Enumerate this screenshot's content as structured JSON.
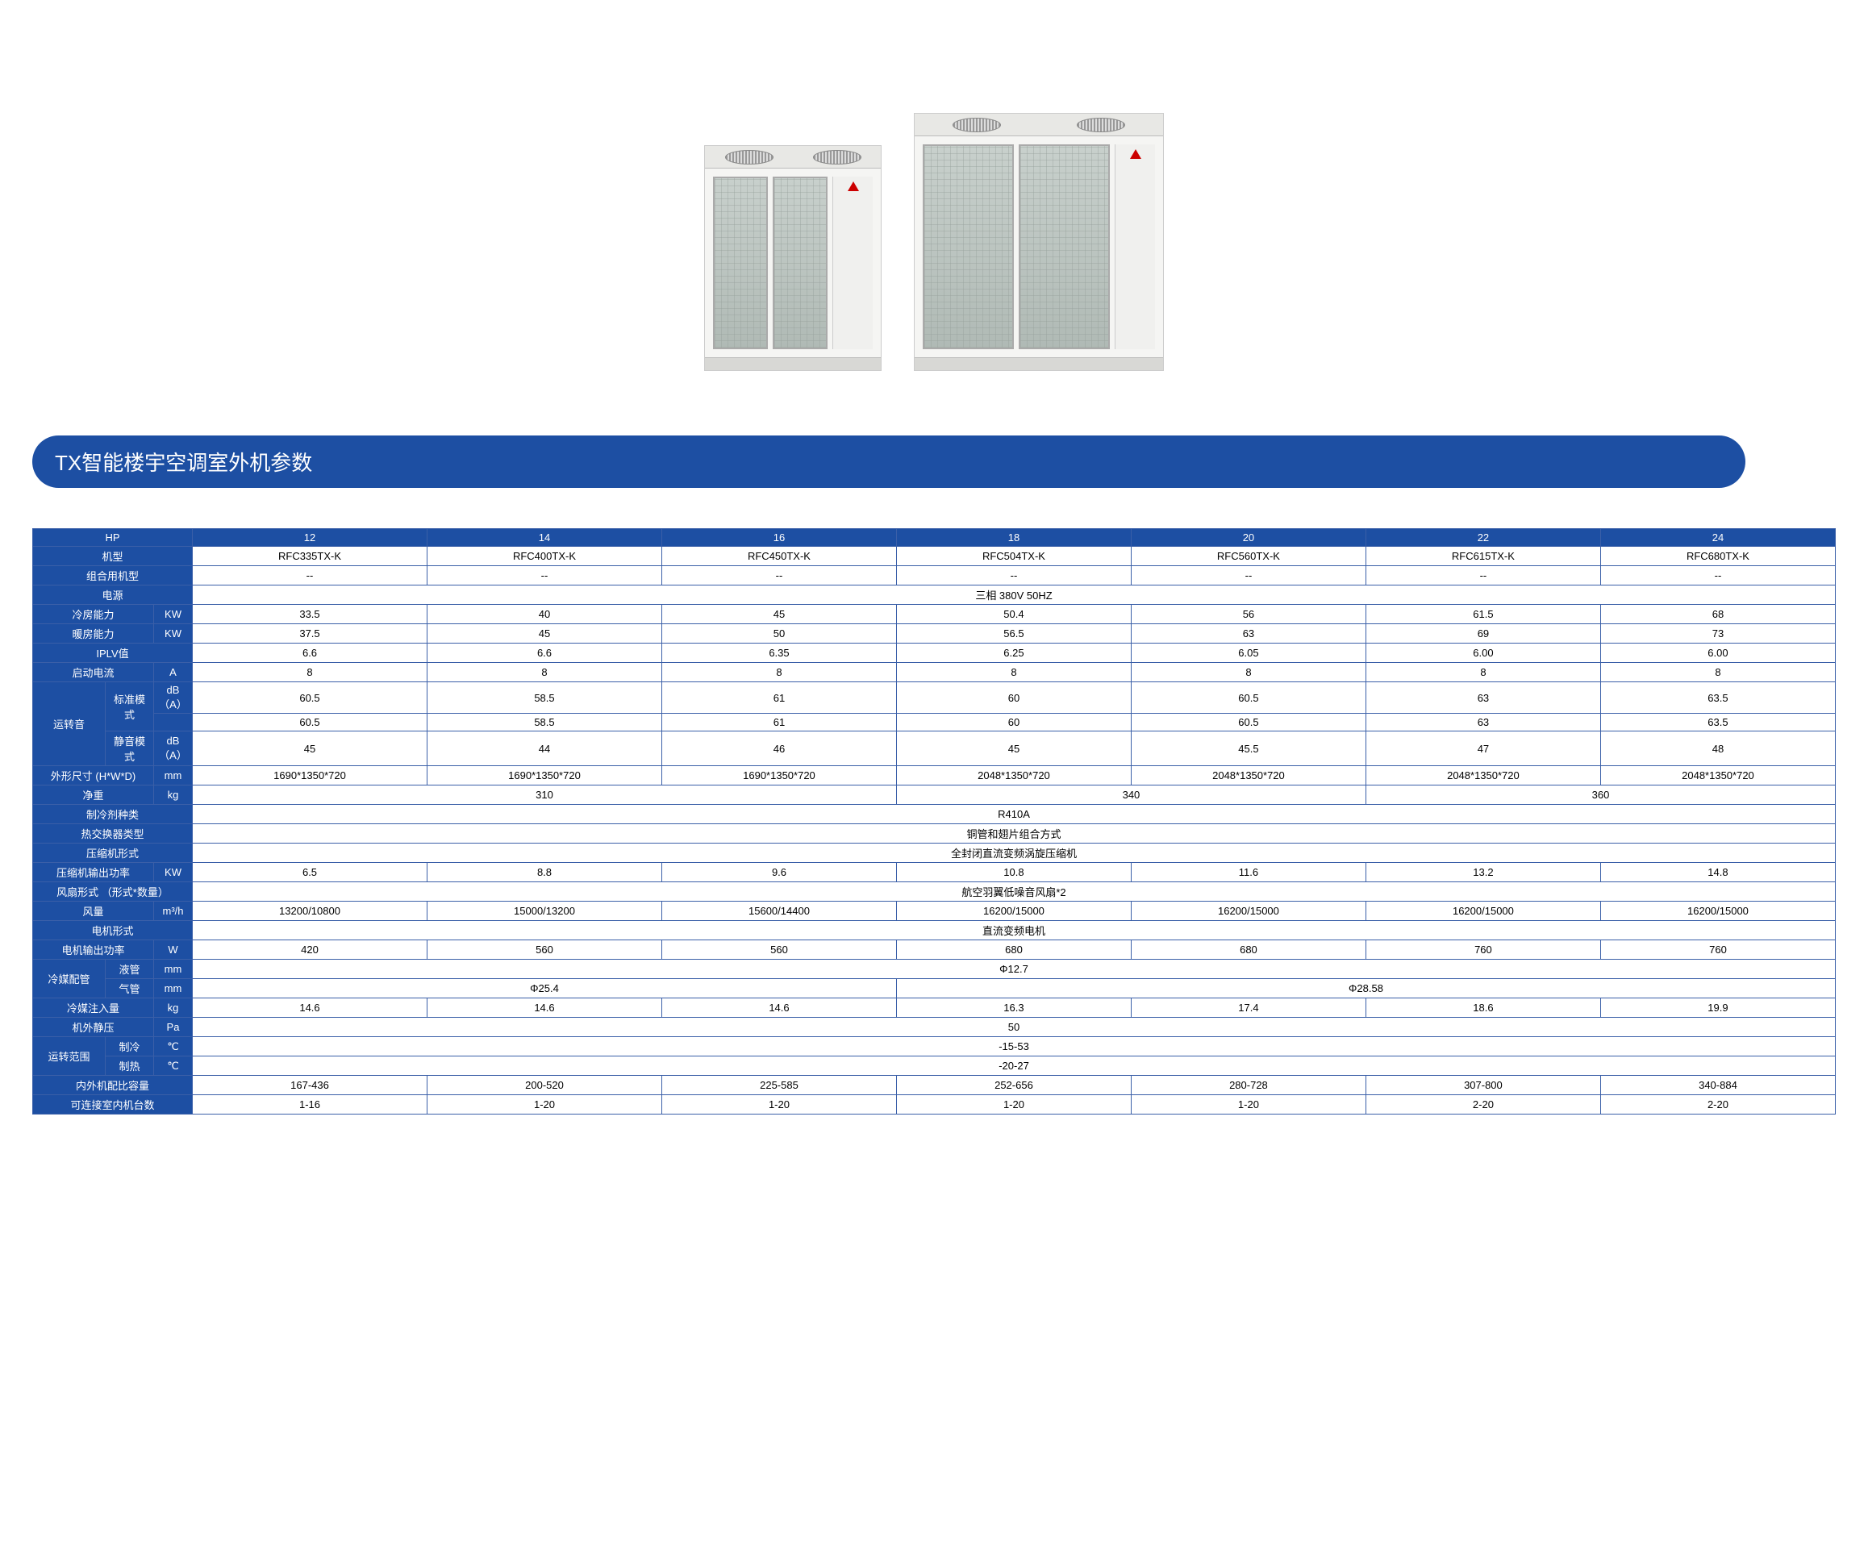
{
  "title": "TX智能楼宇空调室外机参数",
  "colors": {
    "header_bg": "#1d4fa3",
    "header_text": "#ffffff",
    "border": "#3a5fa8",
    "page_bg": "#ffffff"
  },
  "labels": {
    "hp": "HP",
    "model": "机型",
    "combo_model": "组合用机型",
    "power_source": "电源",
    "cooling_capacity": "冷房能力",
    "heating_capacity": "暖房能力",
    "iplv": "IPLV值",
    "start_current": "启动电流",
    "noise": "运转音",
    "noise_std": "标准模式",
    "noise_quiet": "静音模式",
    "dimensions": "外形尺寸 (H*W*D)",
    "net_weight": "净重",
    "refrigerant": "制冷剂种类",
    "hx_type": "热交换器类型",
    "compressor_type": "压缩机形式",
    "compressor_output": "压缩机输出功率",
    "fan_form": "风扇形式  （形式*数量）",
    "airflow": "风量",
    "motor_type": "电机形式",
    "motor_output": "电机输出功率",
    "piping": "冷媒配管",
    "liquid_pipe": "液管",
    "gas_pipe": "气管",
    "charge": "冷媒注入量",
    "ext_static": "机外静压",
    "op_range": "运转范围",
    "op_cool": "制冷",
    "op_heat": "制热",
    "idu_ratio": "内外机配比容量",
    "idu_count": "可连接室内机台数"
  },
  "units": {
    "kw": "KW",
    "a": "A",
    "dba": "dB（A）",
    "mm": "mm",
    "kg": "kg",
    "m3h": "m³/h",
    "w": "W",
    "pa": "Pa",
    "c": "℃"
  },
  "hp_values": [
    "12",
    "14",
    "16",
    "18",
    "20",
    "22",
    "24"
  ],
  "models": [
    "RFC335TX-K",
    "RFC400TX-K",
    "RFC450TX-K",
    "RFC504TX-K",
    "RFC560TX-K",
    "RFC615TX-K",
    "RFC680TX-K"
  ],
  "combo": [
    "--",
    "--",
    "--",
    "--",
    "--",
    "--",
    "--"
  ],
  "power_source_val": "三相 380V 50HZ",
  "cooling": [
    "33.5",
    "40",
    "45",
    "50.4",
    "56",
    "61.5",
    "68"
  ],
  "heating": [
    "37.5",
    "45",
    "50",
    "56.5",
    "63",
    "69",
    "73"
  ],
  "iplv_vals": [
    "6.6",
    "6.6",
    "6.35",
    "6.25",
    "6.05",
    "6.00",
    "6.00"
  ],
  "start_current_vals": [
    "8",
    "8",
    "8",
    "8",
    "8",
    "8",
    "8"
  ],
  "noise_std_1": [
    "60.5",
    "58.5",
    "61",
    "60",
    "60.5",
    "63",
    "63.5"
  ],
  "noise_std_2": [
    "60.5",
    "58.5",
    "61",
    "60",
    "60.5",
    "63",
    "63.5"
  ],
  "noise_quiet_vals": [
    "45",
    "44",
    "46",
    "45",
    "45.5",
    "47",
    "48"
  ],
  "dimensions_vals": [
    "1690*1350*720",
    "1690*1350*720",
    "1690*1350*720",
    "2048*1350*720",
    "2048*1350*720",
    "2048*1350*720",
    "2048*1350*720"
  ],
  "weight_groups": [
    {
      "span": 3,
      "val": "310"
    },
    {
      "span": 2,
      "val": "340"
    },
    {
      "span": 2,
      "val": "360"
    }
  ],
  "refrigerant_val": "R410A",
  "hx_type_val": "铜管和翅片组合方式",
  "compressor_type_val": "全封闭直流变频涡旋压缩机",
  "compressor_output_vals": [
    "6.5",
    "8.8",
    "9.6",
    "10.8",
    "11.6",
    "13.2",
    "14.8"
  ],
  "fan_form_val": "航空羽翼低噪音风扇*2",
  "airflow_vals": [
    "13200/10800",
    "15000/13200",
    "15600/14400",
    "16200/15000",
    "16200/15000",
    "16200/15000",
    "16200/15000"
  ],
  "motor_type_val": "直流变频电机",
  "motor_output_groups": [
    {
      "span": 1,
      "val": "420"
    },
    {
      "span": 1,
      "val": "560"
    },
    {
      "span": 1,
      "val": "560"
    },
    {
      "span": 1,
      "val": "680"
    },
    {
      "span": 1,
      "val": "680"
    },
    {
      "span": 1,
      "val": "760"
    },
    {
      "span": 1,
      "val": "760"
    }
  ],
  "liquid_pipe_val": "Φ12.7",
  "gas_pipe_groups": [
    {
      "span": 3,
      "val": "Φ25.4"
    },
    {
      "span": 4,
      "val": "Φ28.58"
    }
  ],
  "charge_vals": [
    "14.6",
    "14.6",
    "14.6",
    "16.3",
    "17.4",
    "18.6",
    "19.9"
  ],
  "ext_static_val": "50",
  "op_cool_val": "-15-53",
  "op_heat_val": "-20-27",
  "idu_ratio_vals": [
    "167-436",
    "200-520",
    "225-585",
    "252-656",
    "280-728",
    "307-800",
    "340-884"
  ],
  "idu_count_vals": [
    "1-16",
    "1-20",
    "1-20",
    "1-20",
    "1-20",
    "2-20",
    "2-20"
  ]
}
